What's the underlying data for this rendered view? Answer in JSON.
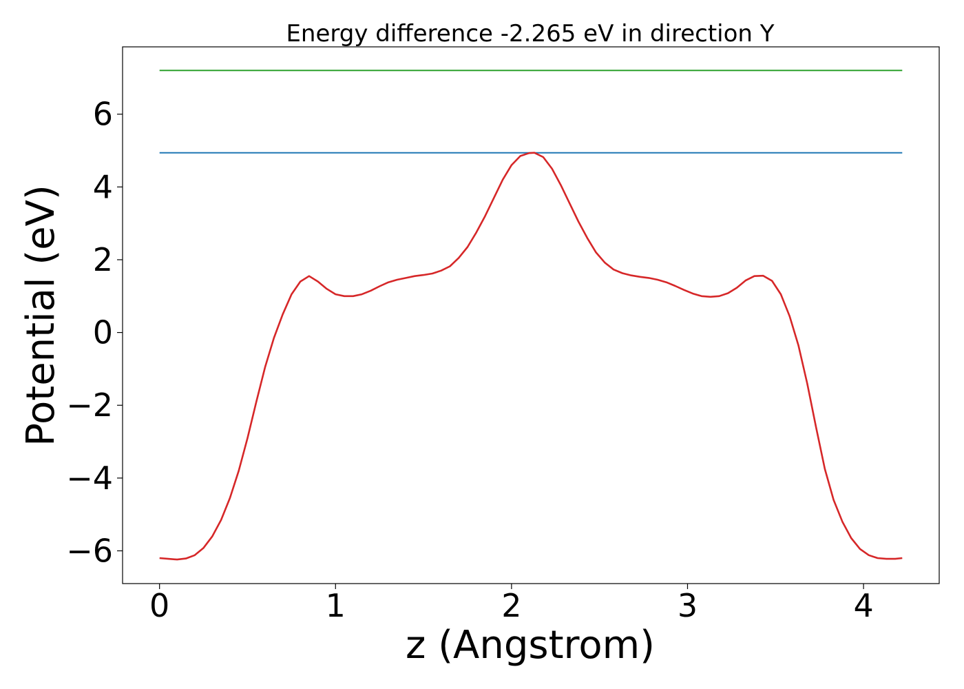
{
  "chart_data": {
    "type": "line",
    "title": "Energy difference -2.265 eV in direction Y",
    "xlabel": "z (Angstrom)",
    "ylabel": "Potential (eV)",
    "xlim": [
      -0.21,
      4.43
    ],
    "ylim": [
      -6.9,
      7.85
    ],
    "xticks": [
      0,
      1,
      2,
      3,
      4
    ],
    "yticks": [
      -6,
      -4,
      -2,
      0,
      2,
      4,
      6
    ],
    "xtick_labels": [
      "0",
      "1",
      "2",
      "3",
      "4"
    ],
    "ytick_labels": [
      "−6",
      "−4",
      "−2",
      "0",
      "2",
      "4",
      "6"
    ],
    "grid": false,
    "legend": "none",
    "series": [
      {
        "color": "#2ca02c",
        "x": [
          0,
          4.22
        ],
        "y": [
          7.2,
          7.2
        ]
      },
      {
        "color": "#1f77b4",
        "x": [
          0,
          4.22
        ],
        "y": [
          4.94,
          4.94
        ]
      },
      {
        "color": "#d62728",
        "x": [
          0,
          0.05,
          0.1,
          0.15,
          0.2,
          0.25,
          0.3,
          0.35,
          0.4,
          0.45,
          0.5,
          0.55,
          0.6,
          0.65,
          0.7,
          0.75,
          0.8,
          0.85,
          0.9,
          0.95,
          1.0,
          1.05,
          1.1,
          1.15,
          1.2,
          1.25,
          1.3,
          1.35,
          1.4,
          1.45,
          1.5,
          1.55,
          1.6,
          1.65,
          1.7,
          1.75,
          1.8,
          1.85,
          1.9,
          1.95,
          2.0,
          2.05,
          2.1,
          2.13,
          2.18,
          2.23,
          2.28,
          2.33,
          2.38,
          2.43,
          2.48,
          2.53,
          2.58,
          2.63,
          2.68,
          2.73,
          2.78,
          2.83,
          2.88,
          2.93,
          2.98,
          3.03,
          3.08,
          3.13,
          3.18,
          3.23,
          3.28,
          3.33,
          3.38,
          3.43,
          3.48,
          3.53,
          3.58,
          3.63,
          3.68,
          3.73,
          3.78,
          3.83,
          3.88,
          3.93,
          3.98,
          4.03,
          4.08,
          4.13,
          4.18,
          4.22
        ],
        "y": [
          -6.2,
          -6.22,
          -6.24,
          -6.21,
          -6.12,
          -5.92,
          -5.6,
          -5.15,
          -4.55,
          -3.8,
          -2.9,
          -1.9,
          -0.95,
          -0.15,
          0.5,
          1.05,
          1.4,
          1.55,
          1.4,
          1.2,
          1.05,
          1.0,
          1.0,
          1.05,
          1.15,
          1.27,
          1.38,
          1.45,
          1.5,
          1.55,
          1.58,
          1.62,
          1.7,
          1.82,
          2.05,
          2.35,
          2.75,
          3.2,
          3.7,
          4.2,
          4.6,
          4.85,
          4.93,
          4.94,
          4.82,
          4.5,
          4.05,
          3.55,
          3.05,
          2.6,
          2.2,
          1.92,
          1.73,
          1.63,
          1.57,
          1.53,
          1.5,
          1.45,
          1.38,
          1.28,
          1.17,
          1.07,
          1.0,
          0.98,
          1.0,
          1.08,
          1.23,
          1.43,
          1.55,
          1.56,
          1.42,
          1.05,
          0.45,
          -0.35,
          -1.4,
          -2.6,
          -3.75,
          -4.6,
          -5.2,
          -5.65,
          -5.95,
          -6.12,
          -6.2,
          -6.22,
          -6.22,
          -6.2
        ]
      }
    ]
  }
}
